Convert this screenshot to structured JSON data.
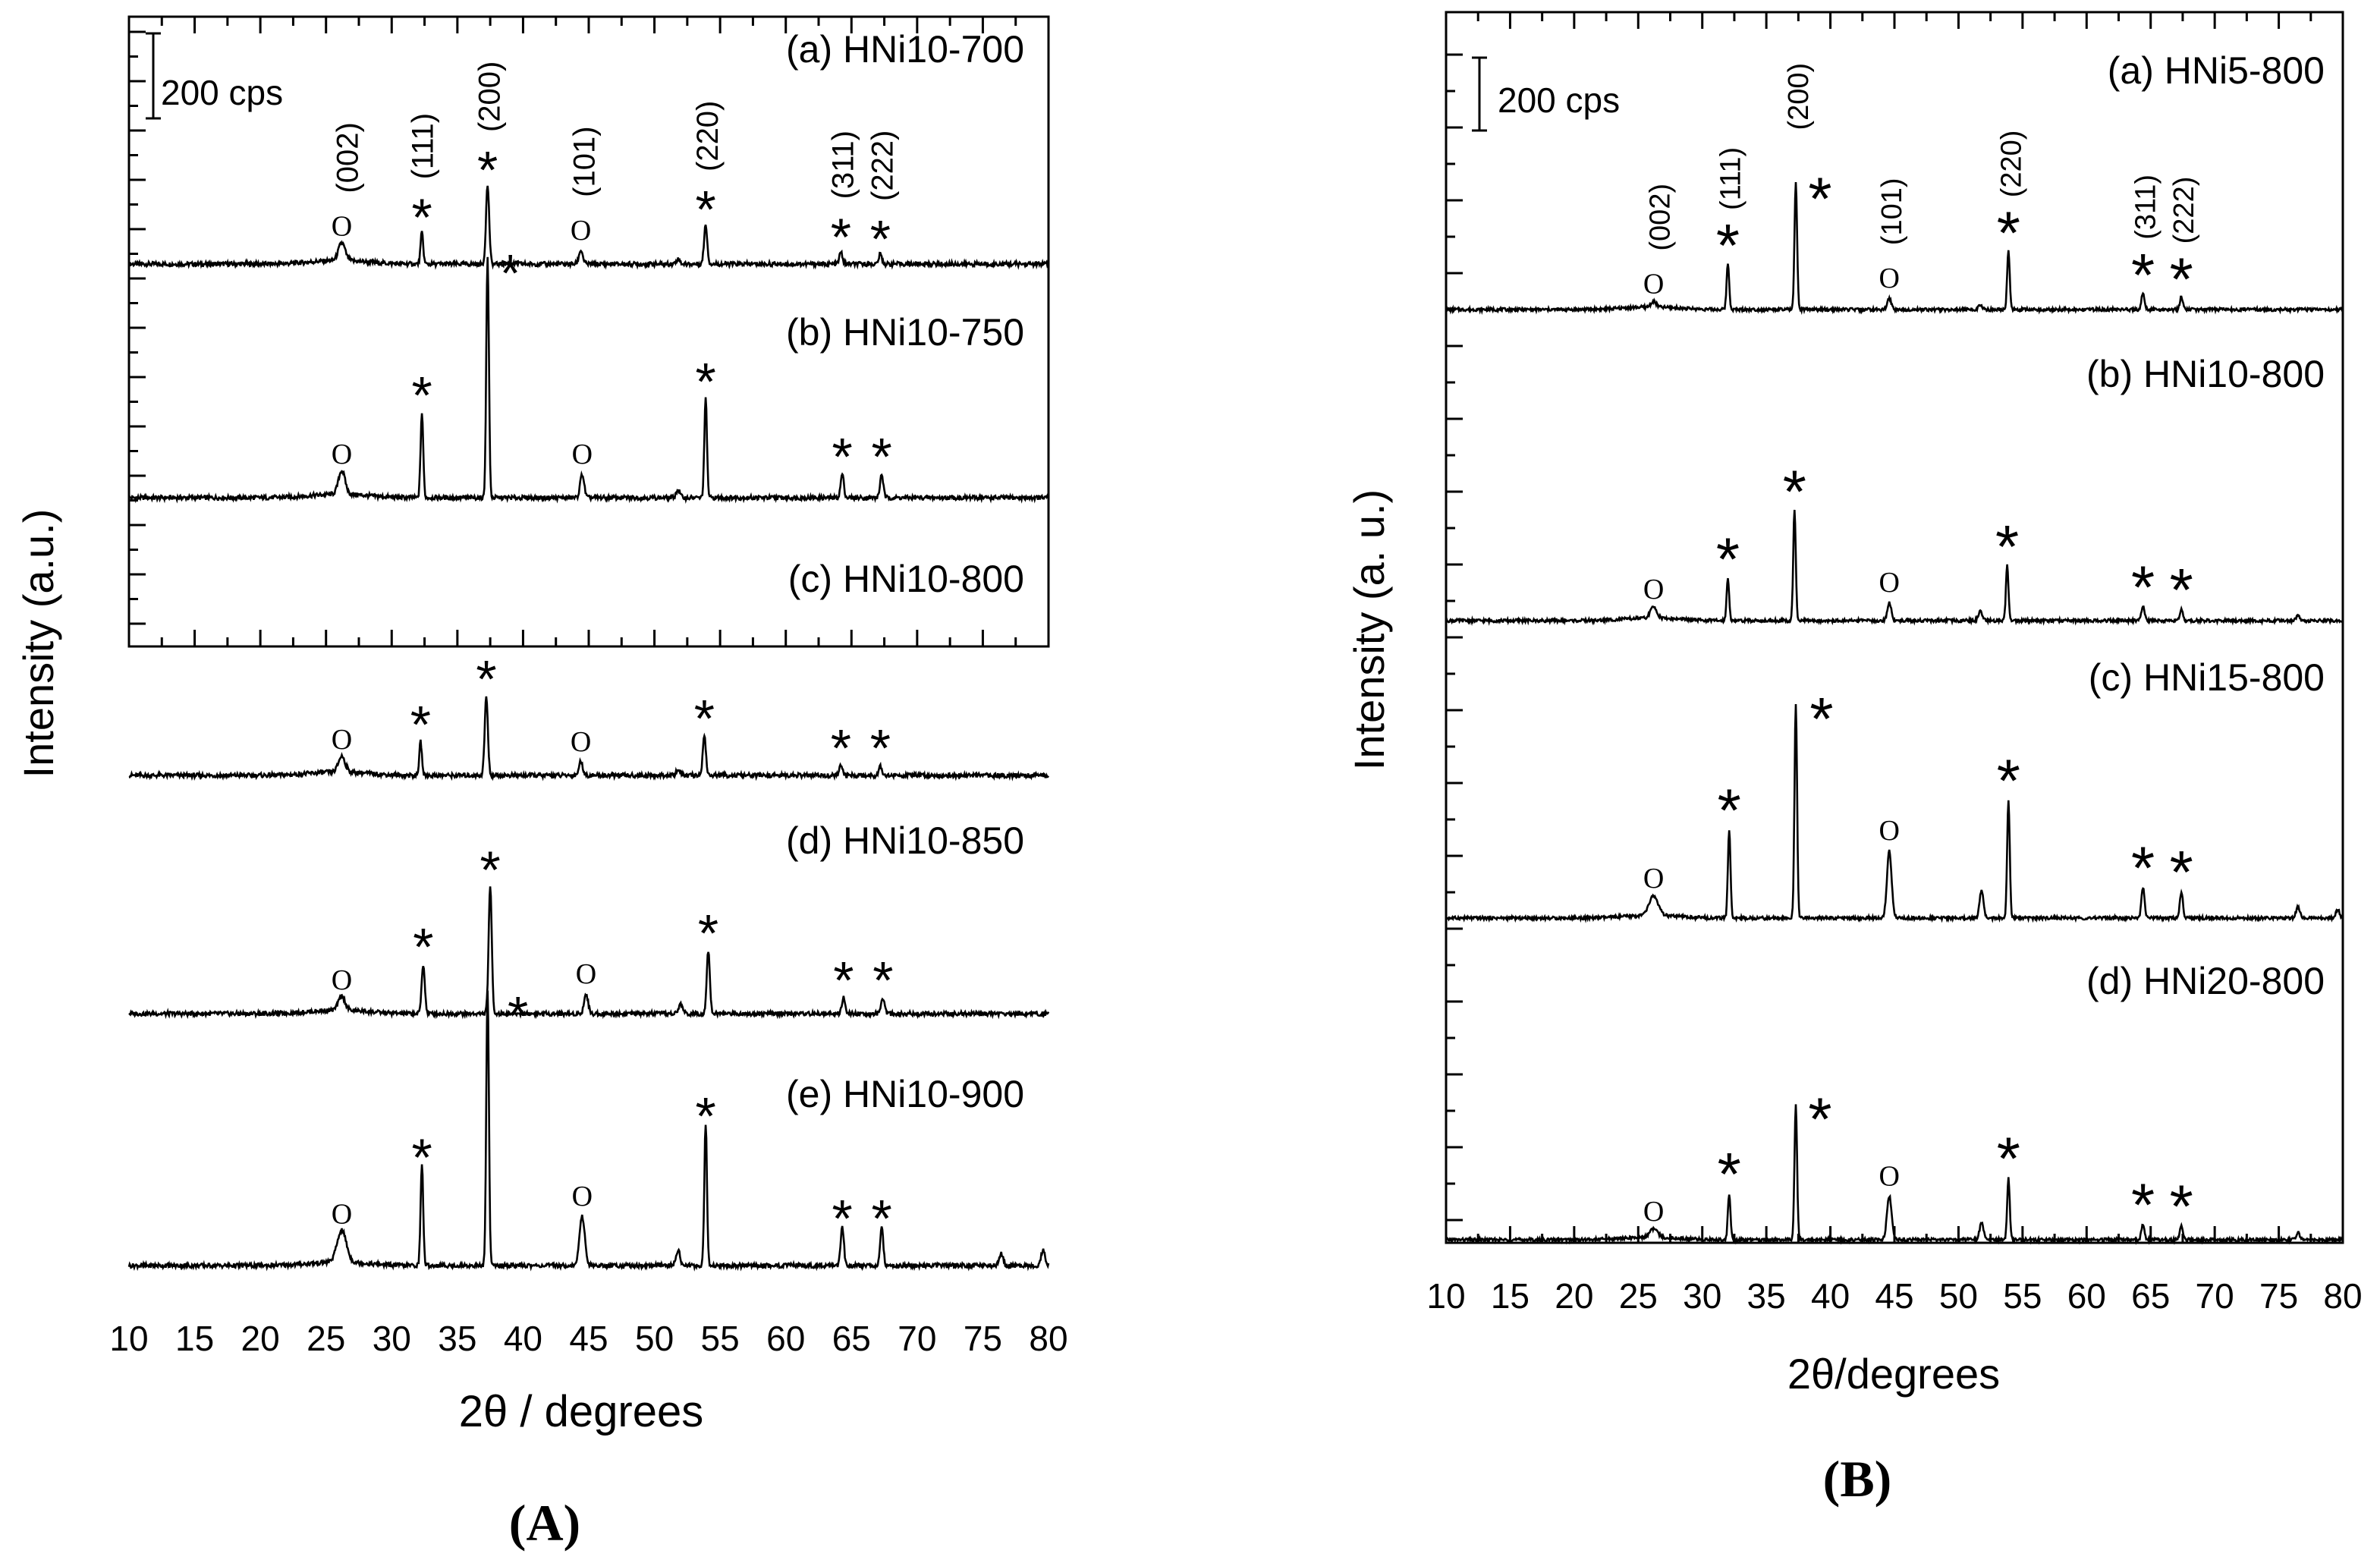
{
  "chart_data": [
    {
      "type": "line",
      "panel_label": "(A)",
      "xlabel": "2θ  / degrees",
      "ylabel": "Intensity (a.u.)",
      "xlim": [
        10,
        80
      ],
      "x_ticks": [
        "10",
        "15",
        "20",
        "25",
        "30",
        "35",
        "40",
        "45",
        "50",
        "55",
        "60",
        "65",
        "70",
        "75",
        "80"
      ],
      "scale_bar": "200 cps",
      "reflections": [
        "(002)",
        "(111)",
        "(200)",
        "(101)",
        "(220)",
        "(311)",
        "(222)"
      ],
      "reflection_positions": [
        26.5,
        32.2,
        37.3,
        44.5,
        53.9,
        64.2,
        67.2
      ],
      "series": [
        {
          "name": "(a) HNi10-700",
          "peaks": [
            [
              26.2,
              0.9,
              0.25
            ],
            [
              32.3,
              1.6,
              0.1
            ],
            [
              37.3,
              4.0,
              0.12
            ],
            [
              44.4,
              0.7,
              0.15
            ],
            [
              51.8,
              0.25,
              0.15
            ],
            [
              53.9,
              2.0,
              0.12
            ],
            [
              64.2,
              0.6,
              0.12
            ],
            [
              67.2,
              0.5,
              0.12
            ]
          ]
        },
        {
          "name": "(b) HNi10-750",
          "peaks": [
            [
              26.2,
              1.2,
              0.25
            ],
            [
              32.3,
              4.3,
              0.1
            ],
            [
              37.3,
              12.2,
              0.1
            ],
            [
              44.5,
              1.2,
              0.15
            ],
            [
              51.8,
              0.4,
              0.15
            ],
            [
              53.9,
              5.0,
              0.1
            ],
            [
              64.3,
              1.2,
              0.12
            ],
            [
              67.3,
              1.2,
              0.12
            ]
          ]
        },
        {
          "name": "(c) HNi10-800",
          "peaks": [
            [
              26.2,
              0.8,
              0.25
            ],
            [
              32.2,
              1.7,
              0.1
            ],
            [
              37.2,
              4.0,
              0.12
            ],
            [
              44.4,
              0.7,
              0.15
            ],
            [
              51.8,
              0.3,
              0.15
            ],
            [
              53.8,
              2.0,
              0.12
            ],
            [
              64.2,
              0.5,
              0.12
            ],
            [
              67.2,
              0.5,
              0.12
            ]
          ]
        },
        {
          "name": "(d) HNi10-850",
          "peaks": [
            [
              26.2,
              0.7,
              0.25
            ],
            [
              32.4,
              2.5,
              0.12
            ],
            [
              37.5,
              6.4,
              0.12
            ],
            [
              44.8,
              1.0,
              0.15
            ],
            [
              52.0,
              0.5,
              0.15
            ],
            [
              54.1,
              3.2,
              0.12
            ],
            [
              64.4,
              0.8,
              0.12
            ],
            [
              67.4,
              0.8,
              0.12
            ]
          ]
        },
        {
          "name": "(e) HNi10-900",
          "peaks": [
            [
              26.2,
              1.6,
              0.35
            ],
            [
              32.3,
              5.1,
              0.1
            ],
            [
              37.3,
              14.0,
              0.1
            ],
            [
              44.5,
              2.5,
              0.2
            ],
            [
              51.8,
              0.8,
              0.15
            ],
            [
              53.9,
              7.2,
              0.1
            ],
            [
              64.3,
              2.0,
              0.12
            ],
            [
              67.3,
              2.0,
              0.12
            ],
            [
              76.4,
              0.6,
              0.15
            ],
            [
              79.6,
              0.8,
              0.15
            ]
          ]
        }
      ]
    },
    {
      "type": "line",
      "panel_label": "(B)",
      "xlabel": "2θ/degrees",
      "ylabel": "Intensity (a. u.)",
      "xlim": [
        10,
        80
      ],
      "x_ticks": [
        "10",
        "15",
        "20",
        "25",
        "30",
        "35",
        "40",
        "45",
        "50",
        "55",
        "60",
        "65",
        "70",
        "75",
        "80"
      ],
      "scale_bar": "200 cps",
      "reflections": [
        "(002)",
        "(111)",
        "(200)",
        "(101)",
        "(220)",
        "(311)",
        "(222)"
      ],
      "reflection_positions": [
        26.5,
        32.0,
        37.3,
        44.6,
        53.9,
        64.4,
        67.4
      ],
      "series": [
        {
          "name": "(a) HNi5-800",
          "peaks": [
            [
              26.2,
              0.4,
              0.2
            ],
            [
              32.0,
              3.3,
              0.1
            ],
            [
              37.3,
              9.0,
              0.1
            ],
            [
              44.6,
              0.8,
              0.15
            ],
            [
              51.7,
              0.3,
              0.15
            ],
            [
              53.9,
              4.2,
              0.1
            ],
            [
              64.4,
              1.2,
              0.12
            ],
            [
              67.4,
              0.9,
              0.12
            ]
          ]
        },
        {
          "name": "(b) HNi10-800",
          "peaks": [
            [
              26.2,
              0.8,
              0.25
            ],
            [
              32.0,
              3.0,
              0.1
            ],
            [
              37.2,
              7.8,
              0.1
            ],
            [
              44.6,
              1.3,
              0.15
            ],
            [
              51.7,
              0.7,
              0.15
            ],
            [
              53.8,
              3.9,
              0.1
            ],
            [
              64.4,
              1.0,
              0.12
            ],
            [
              67.4,
              0.8,
              0.12
            ],
            [
              76.5,
              0.4,
              0.15
            ]
          ]
        },
        {
          "name": "(c) HNi15-800",
          "peaks": [
            [
              26.2,
              1.4,
              0.35
            ],
            [
              32.1,
              6.3,
              0.1
            ],
            [
              37.3,
              15.2,
              0.1
            ],
            [
              44.6,
              4.8,
              0.18
            ],
            [
              51.8,
              2.0,
              0.15
            ],
            [
              53.9,
              8.4,
              0.1
            ],
            [
              64.4,
              2.2,
              0.12
            ],
            [
              67.4,
              1.9,
              0.12
            ],
            [
              76.5,
              0.8,
              0.15
            ],
            [
              79.6,
              0.6,
              0.15
            ]
          ]
        },
        {
          "name": "(d) HNi20-800",
          "peaks": [
            [
              26.2,
              0.6,
              0.3
            ],
            [
              32.1,
              3.3,
              0.1
            ],
            [
              37.3,
              9.6,
              0.1
            ],
            [
              44.6,
              3.1,
              0.18
            ],
            [
              51.8,
              1.2,
              0.15
            ],
            [
              53.9,
              4.4,
              0.1
            ],
            [
              64.4,
              1.1,
              0.12
            ],
            [
              67.4,
              1.0,
              0.12
            ],
            [
              76.5,
              0.5,
              0.15
            ]
          ]
        }
      ]
    }
  ]
}
